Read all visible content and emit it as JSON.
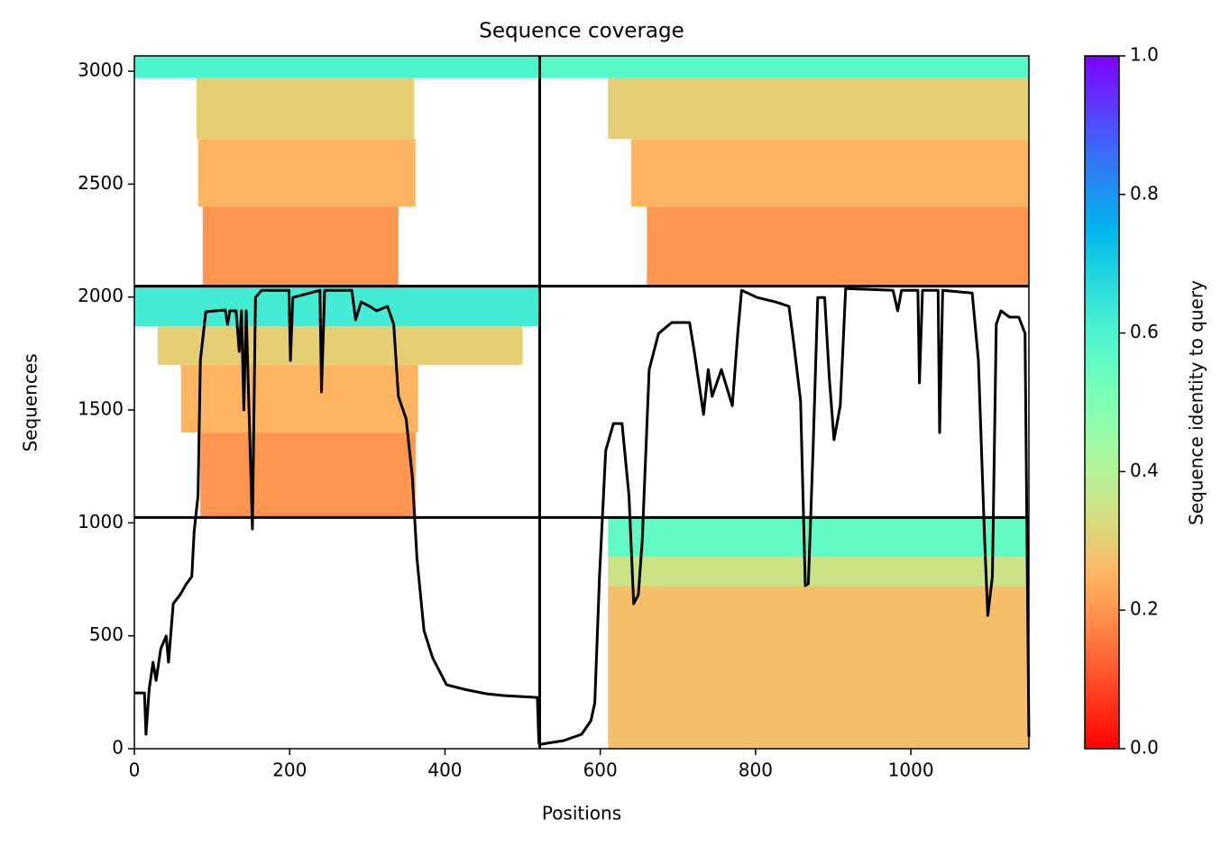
{
  "chart_data": {
    "type": "coverage",
    "title": "Sequence coverage",
    "x_label": "Positions",
    "y_label": "Sequences",
    "xlim": [
      0,
      1152
    ],
    "ylim": [
      0,
      3068
    ],
    "xticks": [
      0,
      200,
      400,
      600,
      800,
      1000
    ],
    "yticks": [
      0,
      500,
      1000,
      1500,
      2000,
      2500,
      3000
    ],
    "colormap": "rainbow_r",
    "colorbar": {
      "label": "Sequence identity to query",
      "clim": [
        0,
        1
      ],
      "ticks": [
        {
          "value": 0,
          "label": "0.0"
        },
        0.2,
        0.4,
        0.6,
        0.8,
        {
          "value": 1,
          "label": "1.0"
        }
      ]
    },
    "chain_breaks_x": [
      522
    ],
    "chain_breaks_y": [
      1024,
      2048
    ],
    "cells": [
      {
        "x": [
          0,
          522
        ],
        "y": [
          2970,
          3068
        ],
        "identity": 0.6
      },
      {
        "x": [
          80,
          360
        ],
        "y": [
          2700,
          2970
        ],
        "identity": 0.3
      },
      {
        "x": [
          82,
          362
        ],
        "y": [
          2400,
          2700
        ],
        "identity": 0.25
      },
      {
        "x": [
          88,
          340
        ],
        "y": [
          2048,
          2400
        ],
        "identity": 0.2
      },
      {
        "x": [
          522,
          1152
        ],
        "y": [
          2970,
          3068
        ],
        "identity": 0.58
      },
      {
        "x": [
          610,
          1152
        ],
        "y": [
          2700,
          2970
        ],
        "identity": 0.3
      },
      {
        "x": [
          640,
          1152
        ],
        "y": [
          2400,
          2700
        ],
        "identity": 0.25
      },
      {
        "x": [
          660,
          1152
        ],
        "y": [
          2048,
          2400
        ],
        "identity": 0.2
      },
      {
        "x": [
          0,
          522
        ],
        "y": [
          1870,
          2048
        ],
        "identity": 0.62
      },
      {
        "x": [
          30,
          500
        ],
        "y": [
          1700,
          1870
        ],
        "identity": 0.3
      },
      {
        "x": [
          60,
          365
        ],
        "y": [
          1400,
          1700
        ],
        "identity": 0.25
      },
      {
        "x": [
          85,
          362
        ],
        "y": [
          1024,
          1400
        ],
        "identity": 0.2
      },
      {
        "x": [
          610,
          1152
        ],
        "y": [
          850,
          1024
        ],
        "identity": 0.56
      },
      {
        "x": [
          610,
          1152
        ],
        "y": [
          720,
          850
        ],
        "identity": 0.35
      },
      {
        "x": [
          610,
          1152
        ],
        "y": [
          0,
          720
        ],
        "identity": 0.27
      }
    ],
    "coverage": {
      "color": "#000000",
      "x": [
        0,
        13,
        15,
        19,
        24,
        28,
        34,
        41,
        44,
        50,
        59,
        67,
        74,
        77,
        82,
        85,
        92,
        117,
        120,
        123,
        131,
        135,
        138,
        141,
        144,
        152,
        156,
        164,
        199,
        201,
        204,
        239,
        241,
        245,
        280,
        285,
        292,
        303,
        312,
        326,
        334,
        340,
        350,
        358,
        364,
        373,
        384,
        402,
        425,
        454,
        477,
        519,
        521,
        524,
        553,
        576,
        588,
        593,
        599,
        607,
        617,
        628,
        637,
        643,
        649,
        654,
        663,
        675,
        692,
        715,
        721,
        733,
        739,
        744,
        756,
        770,
        777,
        782,
        802,
        826,
        843,
        849,
        858,
        864,
        868,
        874,
        880,
        889,
        895,
        901,
        909,
        916,
        977,
        983,
        988,
        1009,
        1011,
        1015,
        1035,
        1037,
        1041,
        1079,
        1087,
        1095,
        1099,
        1105,
        1110,
        1116,
        1127,
        1139,
        1147,
        1152
      ],
      "y": [
        247,
        247,
        64,
        263,
        383,
        303,
        443,
        499,
        383,
        642,
        682,
        730,
        762,
        961,
        1121,
        1719,
        1935,
        1943,
        1879,
        1939,
        1939,
        1759,
        1939,
        1500,
        1939,
        973,
        1998,
        2030,
        2030,
        1719,
        1998,
        2030,
        1580,
        2030,
        2030,
        1899,
        1978,
        1959,
        1939,
        1959,
        1879,
        1560,
        1460,
        1201,
        842,
        523,
        403,
        283,
        263,
        243,
        235,
        227,
        24,
        20,
        36,
        64,
        124,
        203,
        762,
        1320,
        1440,
        1440,
        1121,
        642,
        682,
        922,
        1679,
        1839,
        1887,
        1887,
        1759,
        1480,
        1679,
        1560,
        1679,
        1519,
        1839,
        2030,
        1998,
        1978,
        1959,
        1799,
        1540,
        722,
        730,
        1320,
        1998,
        1998,
        1639,
        1368,
        1519,
        2038,
        2030,
        1939,
        2030,
        2030,
        1620,
        2030,
        2030,
        1400,
        2030,
        2018,
        1719,
        922,
        590,
        762,
        1879,
        1939,
        1911,
        1911,
        1839,
        52
      ]
    }
  }
}
